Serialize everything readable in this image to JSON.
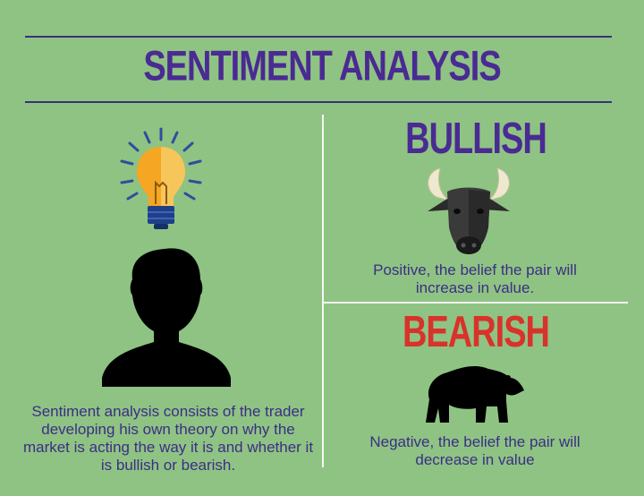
{
  "title": "SENTIMENT ANALYSIS",
  "bullish": {
    "heading": "BULLISH",
    "description": "Positive, the belief the pair will increase in value."
  },
  "bearish": {
    "heading": "BEARISH",
    "description": "Negative, the belief the pair will decrease in value"
  },
  "trader": {
    "description": "Sentiment analysis consists of the trader developing his own theory on why the market is acting the way it is and whether it is bullish or bearish."
  },
  "colors": {
    "background": "#8fc383",
    "title": "#4a2a93",
    "bullish": "#4a2a93",
    "bearish": "#d9322b",
    "text": "#3b2e86"
  },
  "icons": [
    "lightbulb-icon",
    "person-silhouette-icon",
    "bull-head-icon",
    "bear-icon"
  ]
}
